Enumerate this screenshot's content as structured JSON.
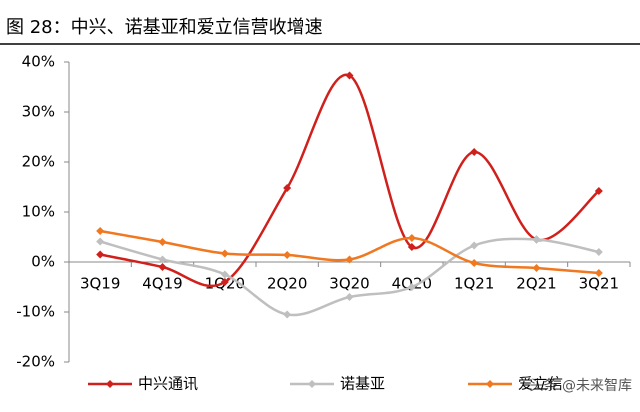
{
  "chart_data": {
    "type": "line",
    "title": "图 28：中兴、诺基亚和爱立信营收增速",
    "categories": [
      "3Q19",
      "4Q19",
      "1Q20",
      "2Q20",
      "3Q20",
      "4Q20",
      "1Q21",
      "2Q21",
      "3Q21"
    ],
    "series": [
      {
        "name": "中兴通讯",
        "color": "#d0201c",
        "values": [
          1.5,
          -1,
          -4,
          14.8,
          37.3,
          3,
          22,
          4.5,
          14.2
        ]
      },
      {
        "name": "诺基亚",
        "color": "#bfbfbf",
        "values": [
          4.1,
          0.5,
          -2.5,
          -10.5,
          -7,
          -5,
          3.3,
          4.5,
          2
        ]
      },
      {
        "name": "爱立信",
        "color": "#f07820",
        "values": [
          6.2,
          4,
          1.7,
          1.4,
          0.5,
          4.8,
          -0.2,
          -1.2,
          -2.2
        ]
      }
    ],
    "ylim": [
      -20,
      40
    ],
    "yticks": [
      {
        "value": -20,
        "label": "-20%"
      },
      {
        "value": -10,
        "label": "-10%"
      },
      {
        "value": 0,
        "label": "0%"
      },
      {
        "value": 10,
        "label": "10%"
      },
      {
        "value": 20,
        "label": "20%"
      },
      {
        "value": 30,
        "label": "30%"
      },
      {
        "value": 40,
        "label": "40%"
      }
    ],
    "smooth": true,
    "grid": false,
    "legend": "bottom",
    "watermark": "头条 @未来智库"
  }
}
